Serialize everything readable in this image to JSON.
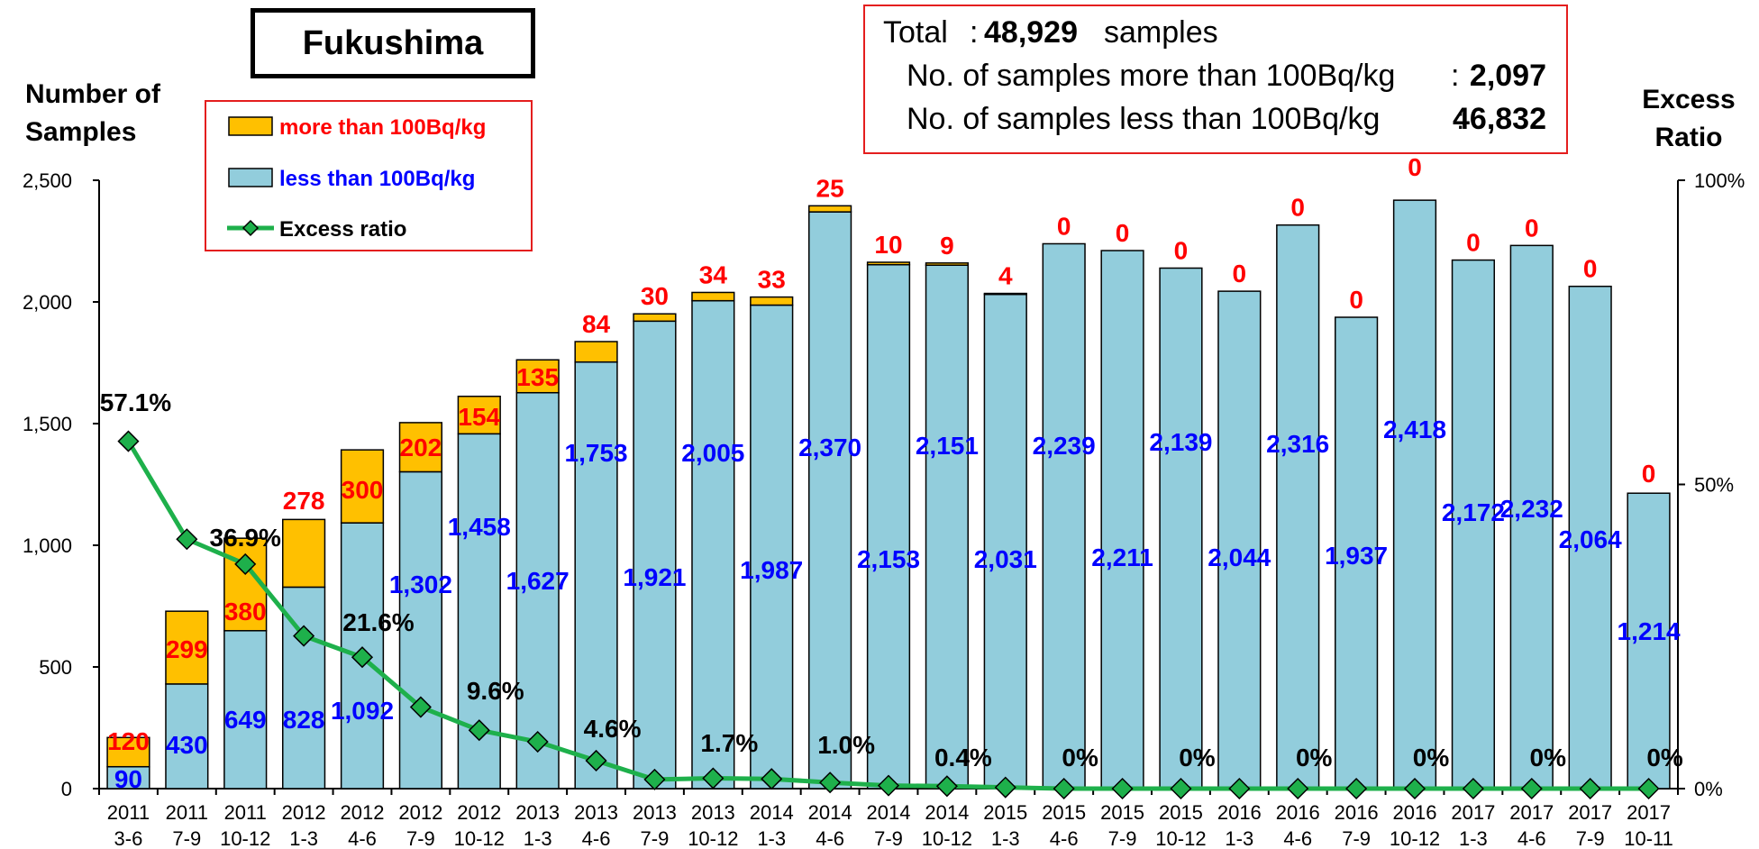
{
  "title": "Fukushima",
  "summary": {
    "total_label": "Total",
    "total_colon": ":",
    "total_value": "48,929",
    "total_unit": "samples",
    "more_label": "No. of samples more than 100Bq/kg",
    "more_colon": ":",
    "more_value": "2,097",
    "less_label": "No. of samples less than 100Bq/kg",
    "less_colon": ":",
    "less_value": "46,832"
  },
  "left_axis_title": [
    "Number of",
    "Samples"
  ],
  "right_axis_title": [
    "Excess",
    "Ratio"
  ],
  "colors": {
    "over_100": "#FFC000",
    "under_100": "#92CDDC",
    "ratio_line": "#1EB04B",
    "ratio_marker": "#1EB04B",
    "over_label": "#FF0000",
    "under_label": "#0000FF",
    "ratio_label": "#000000",
    "legend_border": "#E41E1E"
  },
  "chart_data": {
    "type": "bar",
    "stacked": true,
    "categories": [
      [
        "2011",
        "3-6"
      ],
      [
        "2011",
        "7-9"
      ],
      [
        "2011",
        "10-12"
      ],
      [
        "2012",
        "1-3"
      ],
      [
        "2012",
        "4-6"
      ],
      [
        "2012",
        "7-9"
      ],
      [
        "2012",
        "10-12"
      ],
      [
        "2013",
        "1-3"
      ],
      [
        "2013",
        "4-6"
      ],
      [
        "2013",
        "7-9"
      ],
      [
        "2013",
        "10-12"
      ],
      [
        "2014",
        "1-3"
      ],
      [
        "2014",
        "4-6"
      ],
      [
        "2014",
        "7-9"
      ],
      [
        "2014",
        "10-12"
      ],
      [
        "2015",
        "1-3"
      ],
      [
        "2015",
        "4-6"
      ],
      [
        "2015",
        "7-9"
      ],
      [
        "2015",
        "10-12"
      ],
      [
        "2016",
        "1-3"
      ],
      [
        "2016",
        "4-6"
      ],
      [
        "2016",
        "7-9"
      ],
      [
        "2016",
        "10-12"
      ],
      [
        "2017",
        "1-3"
      ],
      [
        "2017",
        "4-6"
      ],
      [
        "2017",
        "7-9"
      ],
      [
        "2017",
        "10-11"
      ]
    ],
    "series": [
      {
        "name": "less than 100Bq/kg",
        "values": [
          90,
          430,
          649,
          828,
          1092,
          1302,
          1458,
          1627,
          1753,
          1921,
          2005,
          1987,
          2370,
          2153,
          2151,
          2031,
          2239,
          2211,
          2139,
          2044,
          2316,
          1937,
          2418,
          2172,
          2232,
          2064,
          1214
        ],
        "labels": [
          "90",
          "430",
          "649",
          "828",
          "1,092",
          "1,302",
          "1,458",
          "1,627",
          "1,753",
          "1,921",
          "2,005",
          "1,987",
          "2,370",
          "2,153",
          "2,151",
          "2,031",
          "2,239",
          "2,211",
          "2,139",
          "2,044",
          "2,316",
          "1,937",
          "2,418",
          "2,172",
          "2,232",
          "2,064",
          "1,214"
        ]
      },
      {
        "name": "more than 100Bq/kg",
        "values": [
          120,
          299,
          380,
          278,
          300,
          202,
          154,
          135,
          84,
          30,
          34,
          33,
          25,
          10,
          9,
          4,
          0,
          0,
          0,
          0,
          0,
          0,
          0,
          0,
          0,
          0,
          0
        ],
        "labels": [
          "120",
          "299",
          "380",
          "278",
          "300",
          "202",
          "154",
          "135",
          "84",
          "30",
          "34",
          "33",
          "25",
          "10",
          "9",
          "4",
          "0",
          "0",
          "0",
          "0",
          "0",
          "0",
          "0",
          "0",
          "0",
          "0",
          "0"
        ]
      },
      {
        "name": "Excess ratio",
        "axis": "right",
        "values": [
          57.1,
          41.0,
          36.9,
          25.1,
          21.6,
          13.4,
          9.6,
          7.7,
          4.6,
          1.5,
          1.7,
          1.6,
          1.0,
          0.5,
          0.4,
          0.2,
          0,
          0,
          0,
          0,
          0,
          0,
          0,
          0,
          0,
          0,
          0
        ],
        "labels": [
          "57.1%",
          "",
          "36.9%",
          "",
          "21.6%",
          "",
          "9.6%",
          "",
          "4.6%",
          "",
          "1.7%",
          "",
          "1.0%",
          "",
          "0.4%",
          "",
          "0%",
          "",
          "0%",
          "",
          "0%",
          "",
          "0%",
          "",
          "0%",
          "",
          "0%"
        ]
      }
    ],
    "y_left": {
      "ylim": [
        0,
        2500
      ],
      "ticks": [
        "0",
        "500",
        "1,000",
        "1,500",
        "2,000",
        "2,500"
      ]
    },
    "y_right": {
      "ylim": [
        0,
        100
      ],
      "ticks": [
        "0%",
        "50%",
        "100%"
      ]
    },
    "legend": {
      "position": "top-left",
      "entries": [
        "more than 100Bq/kg",
        "less than 100Bq/kg",
        "Excess ratio"
      ]
    },
    "grid": false
  }
}
